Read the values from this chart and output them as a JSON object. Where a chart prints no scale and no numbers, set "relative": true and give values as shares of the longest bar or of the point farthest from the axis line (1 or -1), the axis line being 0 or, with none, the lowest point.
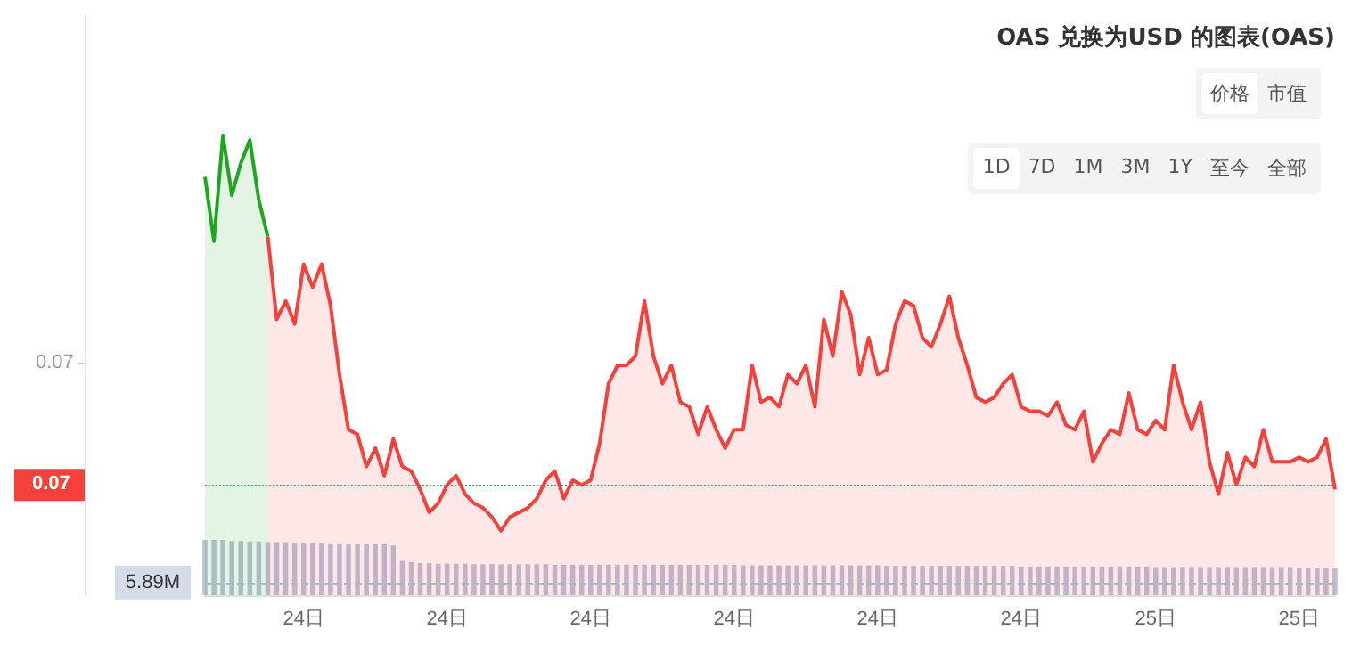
{
  "chart_data": {
    "type": "area",
    "title": "OAS 兑换为USD 的图表(OAS)",
    "relative": true,
    "categories": [
      null,
      null,
      null,
      null,
      null,
      null,
      null,
      null,
      null,
      null,
      null,
      "24日",
      null,
      null,
      null,
      null,
      null,
      null,
      null,
      null,
      null,
      null,
      null,
      null,
      null,
      null,
      null,
      "24日",
      null,
      null,
      null,
      null,
      null,
      null,
      null,
      null,
      null,
      null,
      null,
      null,
      null,
      null,
      null,
      "24日",
      null,
      null,
      null,
      null,
      null,
      null,
      null,
      null,
      null,
      null,
      null,
      null,
      null,
      null,
      null,
      "24日",
      null,
      null,
      null,
      null,
      null,
      null,
      null,
      null,
      null,
      null,
      null,
      null,
      null,
      null,
      null,
      "24日",
      null,
      null,
      null,
      null,
      null,
      null,
      null,
      null,
      null,
      null,
      null,
      null,
      null,
      null,
      null,
      "24日",
      null,
      null,
      null,
      null,
      null,
      null,
      null,
      null,
      null,
      null,
      null,
      null,
      null,
      null,
      "25日",
      null,
      null,
      null,
      null,
      null,
      null,
      null,
      null,
      null,
      null,
      null,
      null,
      null,
      null,
      null,
      "25日",
      null,
      null,
      null,
      null
    ],
    "series": [
      {
        "color": "#1fa81f",
        "values": [
          0.91,
          0.77,
          1.0,
          0.87,
          0.94,
          0.99,
          0.86,
          0.78,
          null,
          null,
          null,
          null,
          null,
          null,
          null,
          null,
          null,
          null,
          null,
          null,
          null,
          null,
          null,
          null,
          null,
          null,
          null,
          null,
          null,
          null,
          null,
          null,
          null,
          null,
          null,
          null,
          null,
          null,
          null,
          null,
          null,
          null,
          null,
          null,
          null,
          null,
          null,
          null,
          null,
          null,
          null,
          null,
          null,
          null,
          null,
          null,
          null,
          null,
          null,
          null,
          null,
          null,
          null,
          null,
          null,
          null,
          null,
          null,
          null,
          null,
          null,
          null,
          null,
          null,
          null,
          null,
          null,
          null,
          null,
          null,
          null,
          null,
          null,
          null,
          null,
          null,
          null,
          null,
          null,
          null,
          null,
          null,
          null,
          null,
          null,
          null,
          null,
          null,
          null,
          null,
          null,
          null,
          null,
          null,
          null,
          null,
          null,
          null,
          null,
          null,
          null,
          null,
          null,
          null,
          null,
          null,
          null,
          null,
          null,
          null,
          null,
          null,
          null,
          null,
          null,
          null,
          null
        ]
      },
      {
        "color": "#f5413b",
        "values": [
          null,
          null,
          null,
          null,
          null,
          null,
          null,
          0.78,
          0.6,
          0.64,
          0.59,
          0.72,
          0.67,
          0.72,
          0.63,
          0.48,
          0.36,
          0.35,
          0.28,
          0.32,
          0.26,
          0.34,
          0.28,
          0.27,
          0.23,
          0.18,
          0.2,
          0.24,
          0.26,
          0.22,
          0.2,
          0.19,
          0.17,
          0.14,
          0.17,
          0.18,
          0.19,
          0.21,
          0.25,
          0.27,
          0.21,
          0.25,
          0.24,
          0.25,
          0.33,
          0.46,
          0.5,
          0.5,
          0.52,
          0.64,
          0.52,
          0.46,
          0.5,
          0.42,
          0.41,
          0.35,
          0.41,
          0.36,
          0.32,
          0.36,
          0.36,
          0.5,
          0.42,
          0.43,
          0.41,
          0.48,
          0.46,
          0.5,
          0.41,
          0.6,
          0.52,
          0.66,
          0.61,
          0.48,
          0.56,
          0.48,
          0.49,
          0.59,
          0.64,
          0.63,
          0.56,
          0.54,
          0.59,
          0.65,
          0.56,
          0.5,
          0.43,
          0.42,
          0.43,
          0.46,
          0.48,
          0.41,
          0.4,
          0.4,
          0.39,
          0.42,
          0.37,
          0.36,
          0.4,
          0.29,
          0.33,
          0.36,
          0.35,
          0.44,
          0.36,
          0.35,
          0.38,
          0.36,
          0.5,
          0.42,
          0.36,
          0.42,
          0.29,
          0.22,
          0.31,
          0.24,
          0.3,
          0.28,
          0.36,
          0.29,
          0.29,
          0.29,
          0.3,
          0.29,
          0.3,
          0.34,
          0.23
        ]
      },
      {
        "type": "bar",
        "axis": "y2",
        "color": "#b9c3db",
        "values": [
          1,
          1,
          1,
          0.98,
          0.98,
          0.97,
          0.97,
          0.96,
          0.96,
          0.96,
          0.95,
          0.95,
          0.95,
          0.95,
          0.94,
          0.94,
          0.94,
          0.93,
          0.93,
          0.92,
          0.92,
          0.9,
          0.62,
          0.6,
          0.58,
          0.58,
          0.57,
          0.57,
          0.57,
          0.57,
          0.56,
          0.56,
          0.56,
          0.56,
          0.56,
          0.56,
          0.56,
          0.56,
          0.56,
          0.55,
          0.55,
          0.55,
          0.55,
          0.55,
          0.55,
          0.55,
          0.55,
          0.55,
          0.55,
          0.55,
          0.55,
          0.55,
          0.55,
          0.55,
          0.55,
          0.55,
          0.55,
          0.55,
          0.55,
          0.55,
          0.54,
          0.54,
          0.54,
          0.54,
          0.54,
          0.54,
          0.54,
          0.54,
          0.54,
          0.54,
          0.54,
          0.54,
          0.54,
          0.54,
          0.54,
          0.54,
          0.53,
          0.53,
          0.53,
          0.53,
          0.53,
          0.53,
          0.53,
          0.53,
          0.53,
          0.53,
          0.53,
          0.53,
          0.53,
          0.53,
          0.53,
          0.52,
          0.52,
          0.52,
          0.52,
          0.52,
          0.52,
          0.52,
          0.52,
          0.52,
          0.52,
          0.52,
          0.52,
          0.52,
          0.52,
          0.52,
          0.51,
          0.51,
          0.51,
          0.51,
          0.51,
          0.51,
          0.51,
          0.51,
          0.51,
          0.51,
          0.51,
          0.51,
          0.51,
          0.51,
          0.51,
          0.51,
          0.5,
          0.5,
          0.5,
          0.5,
          0.5
        ]
      }
    ],
    "ref_lines": [
      {
        "axis": "y",
        "value": 0.24,
        "color": "#f5413b",
        "line_style": "dotted"
      },
      {
        "axis": "y2",
        "value": 0.23,
        "label": "5.89M",
        "color": "#b0b6c4",
        "line_style": "dashed"
      }
    ],
    "annotations": [
      "0.07",
      "0.07",
      "价格",
      "市值",
      "1D",
      "7D",
      "1M",
      "3M",
      "1Y",
      "至今",
      "全部"
    ],
    "grid": false
  }
}
